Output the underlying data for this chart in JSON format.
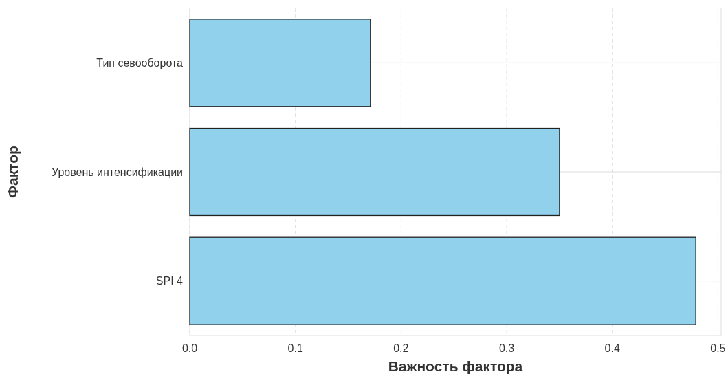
{
  "chart_data": {
    "type": "bar",
    "orientation": "horizontal",
    "xlabel": "Важность фактора",
    "ylabel": "Фактор",
    "categories": [
      "Тип севооборота",
      "Уровень интенсификации",
      "SPI 4"
    ],
    "values": [
      0.171,
      0.35,
      0.479
    ],
    "color": "#92d1ec",
    "xlim": [
      0,
      0.503
    ],
    "xticks": [
      {
        "value": 0,
        "label": "0.0"
      },
      0.1,
      0.2,
      0.3,
      0.4,
      0.5
    ],
    "grid": true
  }
}
